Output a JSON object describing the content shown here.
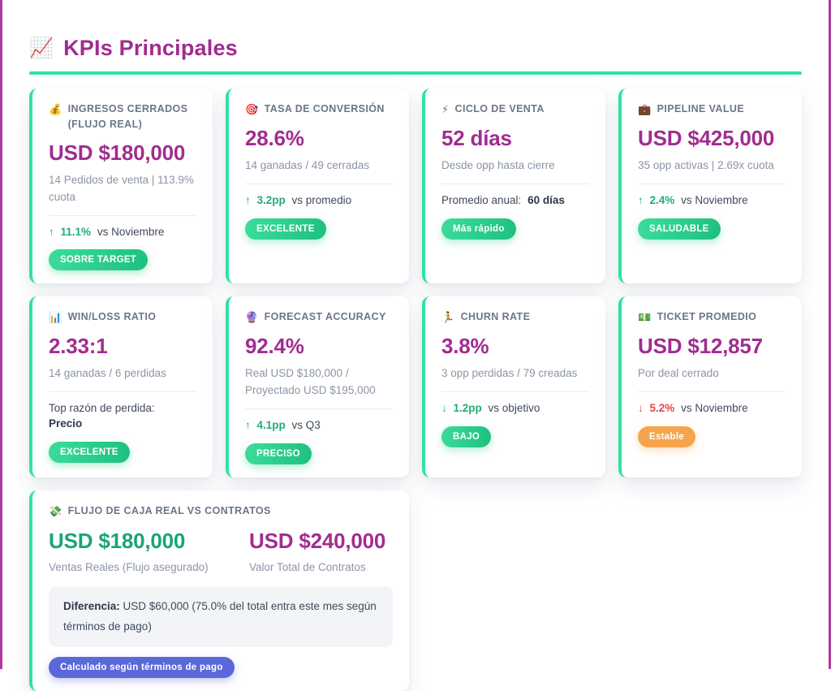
{
  "header": {
    "icon": "📈",
    "title": "KPIs Principales"
  },
  "colors": {
    "purple": "#A12C90",
    "purple_border": "#B13AA2",
    "green_accent": "#2EE3A0",
    "green_badge_from": "#3CDC9B",
    "green_badge_to": "#1EC07E",
    "trend_green": "#1FAE74",
    "trend_red": "#E04848",
    "orange_badge": "#F6A44C",
    "blue_badge": "#5B68D9",
    "wide_green": "#17A673"
  },
  "cards": [
    {
      "icon": "💰",
      "label": "INGRESOS CERRADOS (FLUJO REAL)",
      "value": "USD $180,000",
      "subtitle": "14 Pedidos de venta | 113.9% cuota",
      "trend": {
        "arrow": "↑",
        "value": "11.1%",
        "rest": "vs Noviembre",
        "dir": "good"
      },
      "badge": {
        "text": "SOBRE TARGET",
        "color": "green"
      }
    },
    {
      "icon": "🎯",
      "label": "TASA DE CONVERSIÓN",
      "value": "28.6%",
      "subtitle": "14 ganadas / 49 cerradas",
      "trend": {
        "arrow": "↑",
        "value": "3.2pp",
        "rest": "vs promedio",
        "dir": "good"
      },
      "badge": {
        "text": "EXCELENTE",
        "color": "green"
      }
    },
    {
      "icon": "⚡",
      "label": "CICLO DE VENTA",
      "value": "52 días",
      "subtitle": "Desde opp hasta cierre",
      "context": {
        "prefix": "Promedio anual:",
        "bold": "60 días"
      },
      "badge": {
        "text": "Más rápido",
        "color": "green"
      }
    },
    {
      "icon": "💼",
      "label": "PIPELINE VALUE",
      "value": "USD $425,000",
      "subtitle": "35 opp activas | 2.69x cuota",
      "trend": {
        "arrow": "↑",
        "value": "2.4%",
        "rest": "vs Noviembre",
        "dir": "good"
      },
      "badge": {
        "text": "SALUDABLE",
        "color": "green"
      }
    },
    {
      "icon": "📊",
      "label": "WIN/LOSS RATIO",
      "value": "2.33:1",
      "subtitle": "14 ganadas / 6 perdidas",
      "context": {
        "prefix": "Top razón de perdida:",
        "bold": "Precio"
      },
      "badge": {
        "text": "EXCELENTE",
        "color": "green"
      }
    },
    {
      "icon": "🔮",
      "label": "FORECAST ACCURACY",
      "value": "92.4%",
      "subtitle": "Real USD $180,000 / Proyectado USD $195,000",
      "trend": {
        "arrow": "↑",
        "value": "4.1pp",
        "rest": "vs Q3",
        "dir": "good"
      },
      "badge": {
        "text": "PRECISO",
        "color": "green"
      }
    },
    {
      "icon": "🏃",
      "label": "CHURN RATE",
      "value": "3.8%",
      "subtitle": "3 opp perdidas / 79 creadas",
      "trend": {
        "arrow": "↓",
        "value": "1.2pp",
        "rest": "vs objetivo",
        "dir": "good"
      },
      "badge": {
        "text": "BAJO",
        "color": "green"
      }
    },
    {
      "icon": "💵",
      "label": "TICKET PROMEDIO",
      "value": "USD $12,857",
      "subtitle": "Por deal cerrado",
      "trend": {
        "arrow": "↓",
        "value": "5.2%",
        "rest": "vs Noviembre",
        "dir": "bad"
      },
      "badge": {
        "text": "Estable",
        "color": "orange"
      }
    }
  ],
  "flow_card": {
    "icon": "💸",
    "label": "FLUJO DE CAJA REAL VS CONTRATOS",
    "left": {
      "value": "USD $180,000",
      "label": "Ventas Reales (Flujo asegurado)"
    },
    "right": {
      "value": "USD $240,000",
      "label": "Valor Total de Contratos"
    },
    "note": {
      "bold": "Diferencia:",
      "text": "USD $60,000 (75.0% del total entra este mes según términos de pago)"
    },
    "badge": {
      "text": "Calculado según términos de pago",
      "color": "blue"
    }
  }
}
